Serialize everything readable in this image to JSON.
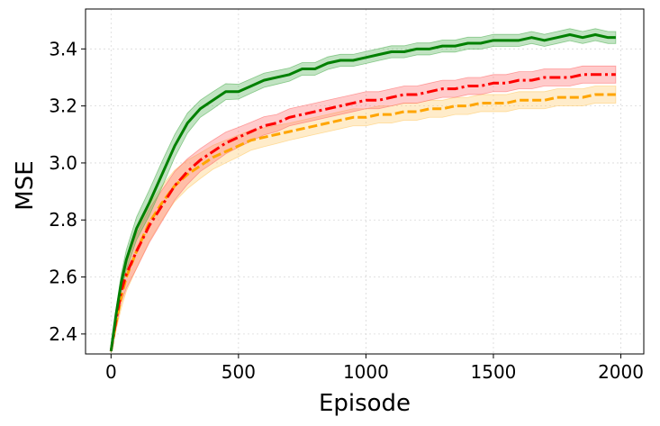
{
  "chart_data": {
    "type": "line",
    "title": "",
    "xlabel": "Episode",
    "ylabel": "MSE",
    "xlim": [
      -100,
      2090
    ],
    "ylim": [
      2.33,
      3.54
    ],
    "xticks": [
      0,
      500,
      1000,
      1500,
      2000
    ],
    "xtick_labels": [
      "0",
      "500",
      "1000",
      "1500",
      "2000"
    ],
    "yticks": [
      2.4,
      2.6,
      2.8,
      3.0,
      3.2,
      3.4
    ],
    "ytick_labels": [
      "2.4",
      "2.6",
      "2.8",
      "3.0",
      "3.2",
      "3.4"
    ],
    "grid": true,
    "x": [
      0,
      20,
      40,
      60,
      100,
      150,
      200,
      250,
      300,
      350,
      400,
      450,
      500,
      550,
      600,
      650,
      700,
      750,
      800,
      850,
      900,
      950,
      1000,
      1050,
      1100,
      1150,
      1200,
      1250,
      1300,
      1350,
      1400,
      1450,
      1500,
      1550,
      1600,
      1650,
      1700,
      1750,
      1800,
      1850,
      1900,
      1950,
      1980
    ],
    "series": [
      {
        "color": "#008000",
        "line_style": "solid",
        "band_color": "#4caf50",
        "values": [
          2.34,
          2.47,
          2.58,
          2.66,
          2.77,
          2.86,
          2.96,
          3.06,
          3.14,
          3.19,
          3.22,
          3.25,
          3.25,
          3.27,
          3.29,
          3.3,
          3.31,
          3.33,
          3.33,
          3.35,
          3.36,
          3.36,
          3.37,
          3.38,
          3.39,
          3.39,
          3.4,
          3.4,
          3.41,
          3.41,
          3.42,
          3.42,
          3.43,
          3.43,
          3.43,
          3.44,
          3.43,
          3.44,
          3.45,
          3.44,
          3.45,
          3.44,
          3.44
        ],
        "band": [
          0.006,
          0.02,
          0.03,
          0.035,
          0.04,
          0.045,
          0.045,
          0.04,
          0.035,
          0.03,
          0.03,
          0.028,
          0.026,
          0.025,
          0.025,
          0.024,
          0.023,
          0.022,
          0.022,
          0.022,
          0.021,
          0.021,
          0.021,
          0.021,
          0.021,
          0.021,
          0.021,
          0.021,
          0.021,
          0.021,
          0.021,
          0.021,
          0.021,
          0.021,
          0.021,
          0.021,
          0.021,
          0.021,
          0.021,
          0.021,
          0.021,
          0.021,
          0.021
        ]
      },
      {
        "color": "#ff0000",
        "line_style": "dashdot",
        "band_color": "#ff6b6b",
        "values": [
          2.34,
          2.45,
          2.55,
          2.61,
          2.69,
          2.78,
          2.85,
          2.92,
          2.97,
          3.01,
          3.04,
          3.07,
          3.09,
          3.11,
          3.13,
          3.14,
          3.16,
          3.17,
          3.18,
          3.19,
          3.2,
          3.21,
          3.22,
          3.22,
          3.23,
          3.24,
          3.24,
          3.25,
          3.26,
          3.26,
          3.27,
          3.27,
          3.28,
          3.28,
          3.29,
          3.29,
          3.3,
          3.3,
          3.3,
          3.31,
          3.31,
          3.31,
          3.31
        ],
        "band": [
          0.006,
          0.025,
          0.04,
          0.05,
          0.06,
          0.06,
          0.055,
          0.05,
          0.045,
          0.04,
          0.04,
          0.038,
          0.035,
          0.033,
          0.032,
          0.03,
          0.03,
          0.03,
          0.03,
          0.03,
          0.03,
          0.03,
          0.03,
          0.03,
          0.03,
          0.03,
          0.03,
          0.03,
          0.03,
          0.03,
          0.03,
          0.03,
          0.03,
          0.03,
          0.03,
          0.03,
          0.03,
          0.03,
          0.03,
          0.03,
          0.03,
          0.03,
          0.03
        ]
      },
      {
        "color": "#ffa500",
        "line_style": "dashed",
        "band_color": "#ffc966",
        "values": [
          2.34,
          2.44,
          2.53,
          2.6,
          2.69,
          2.79,
          2.86,
          2.92,
          2.96,
          2.99,
          3.02,
          3.04,
          3.06,
          3.08,
          3.09,
          3.1,
          3.11,
          3.12,
          3.13,
          3.14,
          3.15,
          3.16,
          3.16,
          3.17,
          3.17,
          3.18,
          3.18,
          3.19,
          3.19,
          3.2,
          3.2,
          3.21,
          3.21,
          3.21,
          3.22,
          3.22,
          3.22,
          3.23,
          3.23,
          3.23,
          3.24,
          3.24,
          3.24
        ],
        "band": [
          0.006,
          0.025,
          0.04,
          0.05,
          0.06,
          0.065,
          0.06,
          0.055,
          0.05,
          0.045,
          0.042,
          0.04,
          0.038,
          0.035,
          0.033,
          0.032,
          0.03,
          0.03,
          0.03,
          0.03,
          0.03,
          0.03,
          0.03,
          0.03,
          0.03,
          0.03,
          0.03,
          0.03,
          0.03,
          0.03,
          0.03,
          0.03,
          0.03,
          0.03,
          0.03,
          0.03,
          0.03,
          0.03,
          0.03,
          0.03,
          0.03,
          0.03,
          0.03
        ]
      }
    ]
  }
}
